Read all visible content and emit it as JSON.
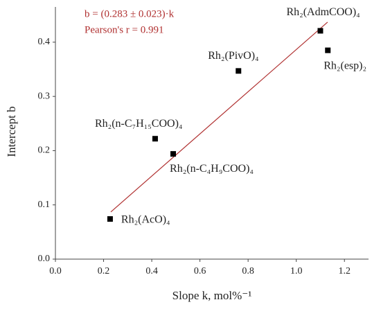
{
  "chart_data": {
    "type": "scatter",
    "x_label": "Slope k, mol%⁻¹",
    "y_label": "Intercept b",
    "annotations": [
      "b = (0.283 ± 0.023)·k",
      "Pearson's r = 0.991"
    ],
    "x": [
      0.227,
      0.414,
      0.489,
      0.76,
      1.1,
      1.131
    ],
    "y": [
      0.074,
      0.222,
      0.194,
      0.347,
      0.421,
      0.385
    ],
    "labels": [
      "Rh₂(AcO)₄",
      "Rh₂(n-C₇H₁₅COO)₄",
      "Rh₂(n-C₄H₉COO)₄",
      "Rh₂(PivO)₄",
      "Rh₂(AdmCOO)₄",
      "Rh₂(esp)₂"
    ],
    "color": "#000000",
    "fit_line": {
      "x": [
        0.23,
        1.13
      ],
      "y": [
        0.087,
        0.437
      ],
      "color": "#b03030"
    },
    "xlim": [
      0,
      1.3
    ],
    "ylim": [
      0,
      0.465
    ],
    "xticks": [
      {
        "value": 0,
        "label": "0.0"
      },
      0.2,
      0.4,
      0.6,
      0.8,
      {
        "value": 1,
        "label": "1.0"
      },
      1.2
    ],
    "yticks": [
      {
        "value": 0,
        "label": "0.0"
      },
      0.1,
      0.2,
      0.3,
      0.4
    ],
    "grid": false
  }
}
